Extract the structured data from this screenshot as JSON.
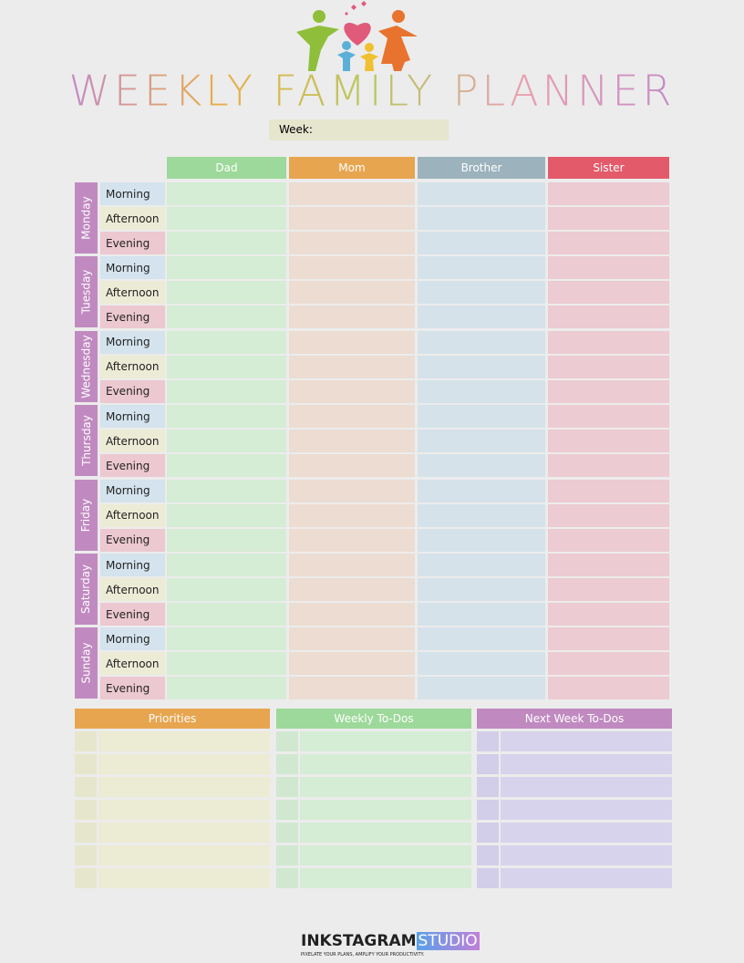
{
  "header": {
    "title": "WEEKLY FAMILY PLANNER",
    "week_label": "Week:"
  },
  "columns": [
    "Dad",
    "Mom",
    "Brother",
    "Sister"
  ],
  "days": [
    {
      "name": "Monday",
      "slots": [
        "Morning",
        "Afternoon",
        "Evening"
      ]
    },
    {
      "name": "Tuesday",
      "slots": [
        "Morning",
        "Afternoon",
        "Evening"
      ]
    },
    {
      "name": "Wednesday",
      "slots": [
        "Morning",
        "Afternoon",
        "Evening"
      ]
    },
    {
      "name": "Thursday",
      "slots": [
        "Morning",
        "Afternoon",
        "Evening"
      ]
    },
    {
      "name": "Friday",
      "slots": [
        "Morning",
        "Afternoon",
        "Evening"
      ]
    },
    {
      "name": "Saturday",
      "slots": [
        "Morning",
        "Afternoon",
        "Evening"
      ]
    },
    {
      "name": "Sunday",
      "slots": [
        "Morning",
        "Afternoon",
        "Evening"
      ]
    }
  ],
  "lists": [
    "Priorities",
    "Weekly To-Dos",
    "Next Week To-Dos"
  ],
  "footer": {
    "brand": "INKSTAGRAM",
    "brand_highlight": "STUDIO",
    "tagline": "PIXELATE YOUR PLANS, AMPLIFY YOUR PRODUCTIVITY."
  }
}
